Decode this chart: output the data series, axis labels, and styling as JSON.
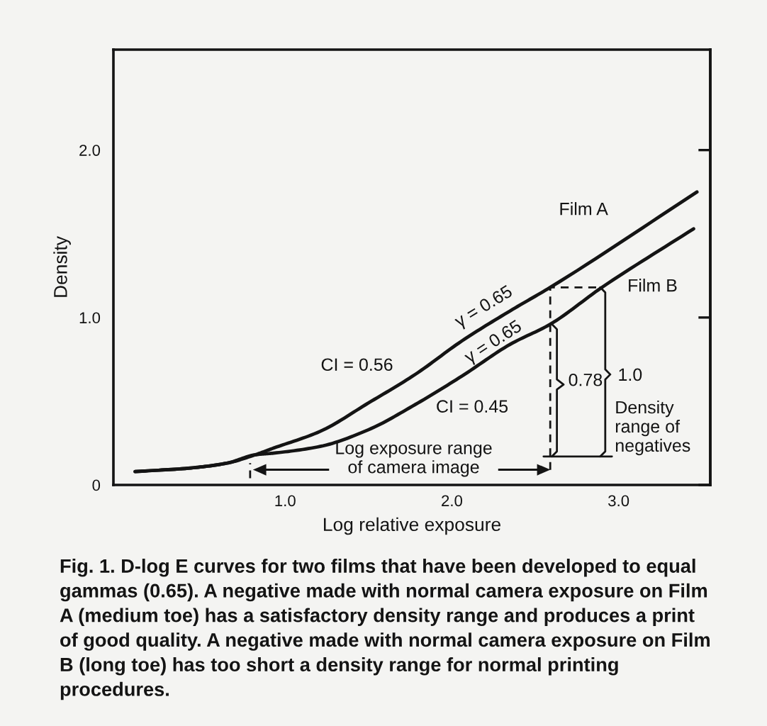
{
  "chart_data": {
    "type": "line",
    "xlabel": "Log relative exposure",
    "ylabel": "Density",
    "xlim": [
      -0.03,
      3.55
    ],
    "ylim": [
      0,
      2.6
    ],
    "xticks": [
      {
        "value": 1,
        "label": "1.0"
      },
      {
        "value": 2,
        "label": "2.0"
      },
      {
        "value": 3,
        "label": "3.0"
      }
    ],
    "yticks": [
      {
        "value": 0,
        "label": "0"
      },
      {
        "value": 1,
        "label": "1.0"
      },
      {
        "value": 2,
        "label": "2.0"
      }
    ],
    "series": [
      {
        "name": "Film A",
        "color": "#141414",
        "x": [
          0.1,
          0.42,
          0.65,
          0.82,
          0.93,
          1.21,
          1.5,
          1.78,
          2.06,
          2.35,
          2.59,
          3.47
        ],
        "values": [
          0.08,
          0.1,
          0.13,
          0.18,
          0.22,
          0.32,
          0.49,
          0.66,
          0.86,
          1.04,
          1.18,
          1.75
        ]
      },
      {
        "name": "Film B",
        "color": "#141414",
        "x": [
          0.1,
          0.42,
          0.65,
          0.82,
          0.93,
          1.21,
          1.5,
          1.78,
          2.06,
          2.35,
          2.59,
          2.9,
          3.45
        ],
        "values": [
          0.08,
          0.1,
          0.13,
          0.18,
          0.19,
          0.23,
          0.33,
          0.48,
          0.65,
          0.84,
          0.96,
          1.18,
          1.53
        ]
      },
      {
        "type": "line",
        "line_style": "dashed",
        "color": "#141414",
        "x": [
          2.59,
          2.59,
          2.9
        ],
        "values": [
          0.09,
          1.18,
          1.18
        ]
      },
      {
        "type": "line",
        "color": "#141414",
        "x": [
          2.55,
          2.96
        ],
        "values": [
          0.17,
          0.17
        ]
      },
      {
        "type": "line",
        "color": "#141414",
        "x": [
          2.6,
          2.63,
          2.63,
          2.67,
          2.63,
          2.63,
          2.6
        ],
        "values": [
          0.96,
          0.93,
          0.63,
          0.6,
          0.57,
          0.2,
          0.17
        ]
      },
      {
        "type": "line",
        "color": "#141414",
        "x": [
          2.89,
          2.92,
          2.92,
          2.95,
          2.92,
          2.92,
          2.89
        ],
        "values": [
          1.18,
          1.15,
          0.69,
          0.66,
          0.63,
          0.2,
          0.17
        ]
      },
      {
        "type": "line",
        "line_style": "dashed",
        "color": "#141414",
        "x": [
          0.79,
          0.79
        ],
        "values": [
          0.04,
          0.13
        ]
      }
    ],
    "annotations": [
      "CI = 0.56",
      "γ = 0.65",
      "γ = 0.65",
      "CI = 0.45",
      "0.78",
      "1.0",
      "Density\nrange of\nnegatives",
      "Log exposure range\nof camera image",
      "Fig. 1. D-log E curves for two films that have been developed to equal gammas (0.65). A negative made with normal camera exposure on Film A (medium toe) has a satisfactory density range and produces a print of good quality. A negative made with normal camera exposure on Film B (long toe) has too short a density range for normal printing procedures."
    ]
  }
}
